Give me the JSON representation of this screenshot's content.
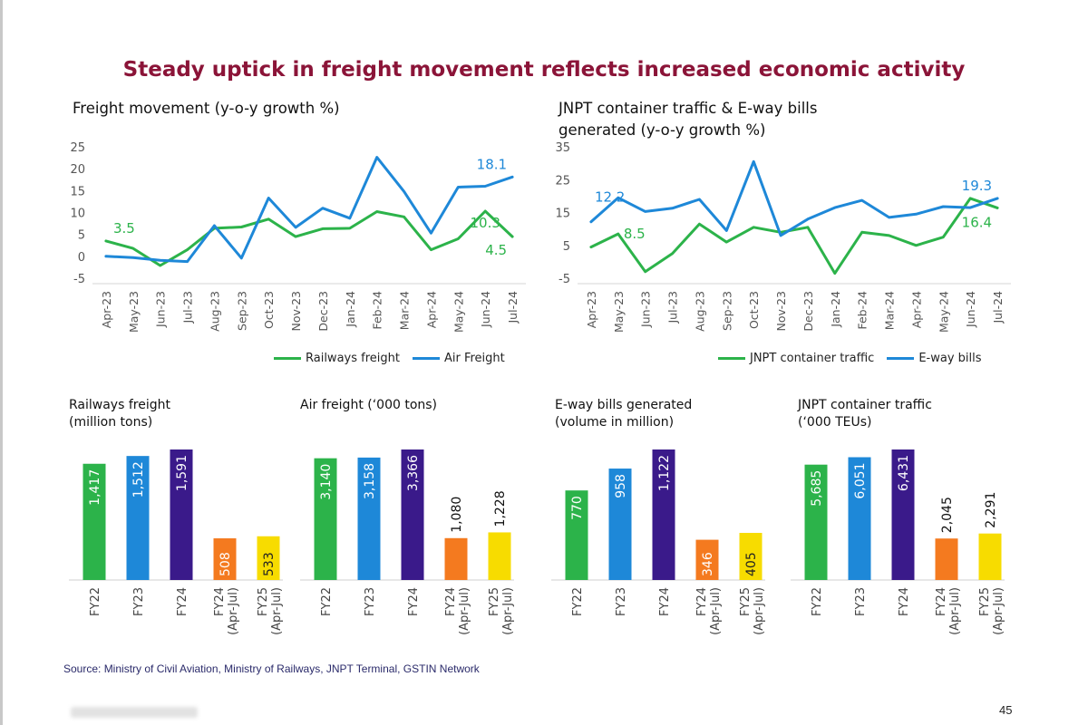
{
  "page": {
    "title": "Steady uptick in freight movement reflects increased economic activity",
    "source": "Source: Ministry of Civil Aviation, Ministry of Railways, JNPT Terminal, GSTIN Network",
    "page_number": "45",
    "colors": {
      "title": "#8b1438",
      "green": "#2cb34a",
      "blue": "#1e88d8",
      "purple": "#3a1a8a",
      "orange": "#f47a1f",
      "yellow": "#f7dc00"
    }
  },
  "chart_data": [
    {
      "type": "line",
      "title": "Freight movement (y-o-y growth %)",
      "categories": [
        "Apr-23",
        "May-23",
        "Jun-23",
        "Jul-23",
        "Aug-23",
        "Sep-23",
        "Oct-23",
        "Nov-23",
        "Dec-23",
        "Jan-24",
        "Feb-24",
        "Mar-24",
        "Apr-24",
        "May-24",
        "Jun-24",
        "Jul-24"
      ],
      "ylim": [
        -5,
        25
      ],
      "yticks": [
        -5,
        0,
        5,
        10,
        15,
        20,
        25
      ],
      "series": [
        {
          "name": "Railways freight",
          "color": "#2cb34a",
          "values": [
            3.5,
            1.8,
            -2.1,
            1.5,
            6.4,
            6.7,
            8.5,
            4.5,
            6.3,
            6.4,
            10.2,
            9.0,
            1.5,
            4.0,
            10.3,
            4.5
          ]
        },
        {
          "name": "Air Freight",
          "color": "#1e88d8",
          "values": [
            0.0,
            -0.3,
            -0.9,
            -1.2,
            7.0,
            -0.4,
            13.3,
            6.6,
            11.0,
            8.7,
            22.6,
            14.8,
            5.3,
            15.8,
            16.0,
            18.1
          ]
        }
      ],
      "data_labels": [
        {
          "text": "3.5",
          "series": 0,
          "index": 0
        },
        {
          "text": "18.1",
          "series": 1,
          "index": 15
        },
        {
          "text": "10.3",
          "series": 0,
          "index": 14
        },
        {
          "text": "4.5",
          "series": 0,
          "index": 15
        }
      ],
      "legend_position": "bottom"
    },
    {
      "type": "line",
      "title": "JNPT container traffic & E-way bills generated (y-o-y growth %)",
      "categories": [
        "Apr-23",
        "May-23",
        "Jun-23",
        "Jul-23",
        "Aug-23",
        "Sep-23",
        "Oct-23",
        "Nov-23",
        "Dec-23",
        "Jan-24",
        "Feb-24",
        "Mar-24",
        "Apr-24",
        "May-24",
        "Jun-24",
        "Jul-24"
      ],
      "ylim": [
        -5,
        35
      ],
      "yticks": [
        -5,
        5,
        15,
        25,
        35
      ],
      "series": [
        {
          "name": "JNPT container traffic",
          "color": "#2cb34a",
          "values": [
            4.5,
            8.5,
            -3.0,
            2.5,
            11.5,
            6.0,
            10.5,
            9.0,
            10.5,
            -3.5,
            9.0,
            8.0,
            5.0,
            7.5,
            19.3,
            16.4
          ]
        },
        {
          "name": "E-way bills",
          "color": "#1e88d8",
          "values": [
            12.2,
            19.5,
            15.3,
            16.3,
            19.0,
            9.5,
            30.5,
            8.0,
            13.0,
            16.5,
            18.7,
            13.5,
            14.5,
            16.8,
            16.5,
            19.3
          ]
        }
      ],
      "data_labels": [
        {
          "text": "12.2",
          "series": 1,
          "index": 0
        },
        {
          "text": "8.5",
          "series": 0,
          "index": 1
        },
        {
          "text": "19.3",
          "series": 1,
          "index": 15
        },
        {
          "text": "16.4",
          "series": 0,
          "index": 15
        }
      ],
      "legend_position": "bottom"
    },
    {
      "type": "bar",
      "title": "Railways freight (million tons)",
      "categories": [
        "FY22",
        "FY23",
        "FY24",
        "FY24 (Apr-Jul)",
        "FY25 (Apr-Jul)"
      ],
      "values": [
        1417,
        1512,
        1591,
        508,
        533
      ],
      "labels": [
        "1,417",
        "1,512",
        "1,591",
        "508",
        "533"
      ],
      "label_inside": [
        true,
        true,
        true,
        true,
        true
      ],
      "colors": [
        "#2cb34a",
        "#1e88d8",
        "#3a1a8a",
        "#f47a1f",
        "#f7dc00"
      ]
    },
    {
      "type": "bar",
      "title": "Air freight (‘000 tons)",
      "categories": [
        "FY22",
        "FY23",
        "FY24",
        "FY24 (Apr-Jul)",
        "FY25 (Apr-Jul)"
      ],
      "values": [
        3140,
        3158,
        3366,
        1080,
        1228
      ],
      "labels": [
        "3,140",
        "3,158",
        "3,366",
        "1,080",
        "1,228"
      ],
      "label_inside": [
        true,
        true,
        true,
        false,
        false
      ],
      "colors": [
        "#2cb34a",
        "#1e88d8",
        "#3a1a8a",
        "#f47a1f",
        "#f7dc00"
      ]
    },
    {
      "type": "bar",
      "title": "E-way bills generated (volume in million)",
      "categories": [
        "FY22",
        "FY23",
        "FY24",
        "FY24 (Apr-Jul)",
        "FY25 (Apr-Jul)"
      ],
      "values": [
        770,
        958,
        1122,
        346,
        405
      ],
      "labels": [
        "770",
        "958",
        "1,122",
        "346",
        "405"
      ],
      "label_inside": [
        true,
        true,
        true,
        true,
        true
      ],
      "colors": [
        "#2cb34a",
        "#1e88d8",
        "#3a1a8a",
        "#f47a1f",
        "#f7dc00"
      ]
    },
    {
      "type": "bar",
      "title": "JNPT container traffic (‘000 TEUs)",
      "categories": [
        "FY22",
        "FY23",
        "FY24",
        "FY24 (Apr-Jul)",
        "FY25 (Apr-Jul)"
      ],
      "values": [
        5685,
        6051,
        6431,
        2045,
        2291
      ],
      "labels": [
        "5,685",
        "6,051",
        "6,431",
        "2,045",
        "2,291"
      ],
      "label_inside": [
        true,
        true,
        true,
        false,
        false
      ],
      "colors": [
        "#2cb34a",
        "#1e88d8",
        "#3a1a8a",
        "#f47a1f",
        "#f7dc00"
      ]
    }
  ]
}
